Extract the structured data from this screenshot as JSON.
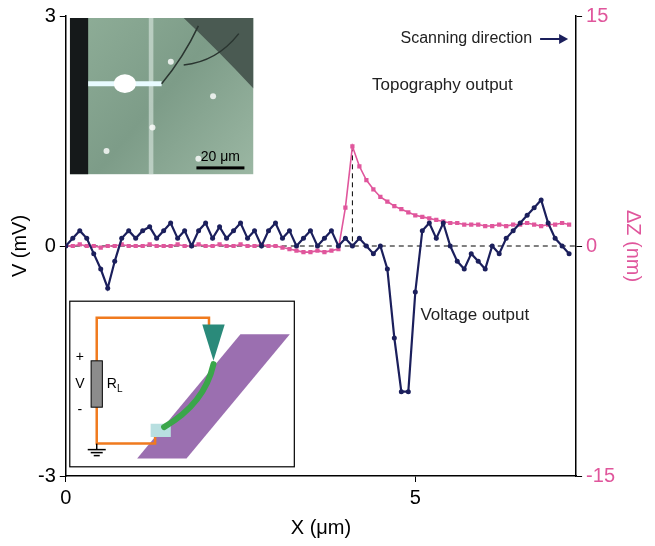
{
  "chart_data": {
    "type": "line",
    "xlabel": "X (μm)",
    "ylabel": "V (mV)",
    "y2label": "ΔZ (nm)",
    "x": [
      0,
      0.1,
      0.2,
      0.3,
      0.4,
      0.5,
      0.6,
      0.7,
      0.8,
      0.9,
      1,
      1.1,
      1.2,
      1.3,
      1.4,
      1.5,
      1.6,
      1.7,
      1.8,
      1.9,
      2,
      2.1,
      2.2,
      2.3,
      2.4,
      2.5,
      2.6,
      2.7,
      2.8,
      2.9,
      3,
      3.1,
      3.2,
      3.3,
      3.4,
      3.5,
      3.6,
      3.7,
      3.8,
      3.9,
      4,
      4.1,
      4.2,
      4.3,
      4.4,
      4.5,
      4.6,
      4.7,
      4.8,
      4.9,
      5,
      5.1,
      5.2,
      5.3,
      5.4,
      5.5,
      5.6,
      5.7,
      5.8,
      5.9,
      6,
      6.1,
      6.2,
      6.3,
      6.4,
      6.5,
      6.6,
      6.7,
      6.8,
      6.9,
      7,
      7.1,
      7.2
    ],
    "xlim": [
      0,
      7.3
    ],
    "xticks": [
      0,
      5
    ],
    "ylim": [
      -3,
      3
    ],
    "yticks": [
      -3,
      0,
      3
    ],
    "y2lim": [
      -15,
      15
    ],
    "y2ticks": [
      -15,
      0,
      15
    ],
    "grid": true,
    "series": [
      {
        "name": "Voltage output",
        "color": "#1b1f5c",
        "marker": "circle",
        "values": [
          0,
          0.1,
          0.2,
          0.1,
          -0.1,
          -0.3,
          -0.55,
          -0.2,
          0.1,
          0.2,
          0.1,
          0.2,
          0.25,
          0.1,
          0.2,
          0.3,
          0.1,
          0.2,
          0,
          0.2,
          0.3,
          0.1,
          0.25,
          0.1,
          0.2,
          0.3,
          0.1,
          0.2,
          0,
          0.2,
          0.3,
          0.1,
          0.2,
          0,
          0.1,
          0.2,
          0,
          0.1,
          0.2,
          0,
          0.1,
          0,
          0.1,
          0,
          -0.1,
          0,
          -0.3,
          -1.2,
          -1.9,
          -1.9,
          -0.6,
          0.2,
          0.3,
          0.1,
          0.3,
          0,
          -0.2,
          -0.3,
          -0.1,
          -0.2,
          -0.3,
          0,
          -0.1,
          0.1,
          0.2,
          0.3,
          0.4,
          0.5,
          0.6,
          0.3,
          0.1,
          0,
          -0.1
        ]
      },
      {
        "name": "Topography output",
        "color": "#e0569c",
        "marker": "square",
        "axis": "y2",
        "values": [
          0,
          0,
          0.1,
          0,
          0,
          -0.1,
          0,
          0,
          0.1,
          0,
          0,
          0,
          0.1,
          0,
          0,
          0,
          0.1,
          0,
          0,
          0.1,
          0,
          0,
          0.1,
          0,
          0,
          0.1,
          0,
          0,
          0.1,
          0,
          0,
          -0.1,
          -0.2,
          -0.3,
          -0.4,
          -0.4,
          -0.3,
          -0.4,
          -0.3,
          -0.2,
          2.5,
          6.5,
          5.2,
          4.3,
          3.7,
          3.2,
          2.9,
          2.6,
          2.4,
          2.2,
          2.0,
          1.9,
          1.8,
          1.7,
          1.6,
          1.5,
          1.5,
          1.4,
          1.4,
          1.4,
          1.3,
          1.3,
          1.4,
          1.3,
          1.4,
          1.4,
          1.5,
          1.4,
          1.3,
          1.4,
          1.4,
          1.5,
          1.4
        ]
      }
    ],
    "annotations": [
      "Scanning direction"
    ],
    "insets": {
      "scale_bar": "20 μm",
      "circuit": {
        "source": "V",
        "resistor": "R",
        "resistor_subscript": "L",
        "plus": "+",
        "minus": "-"
      }
    }
  }
}
